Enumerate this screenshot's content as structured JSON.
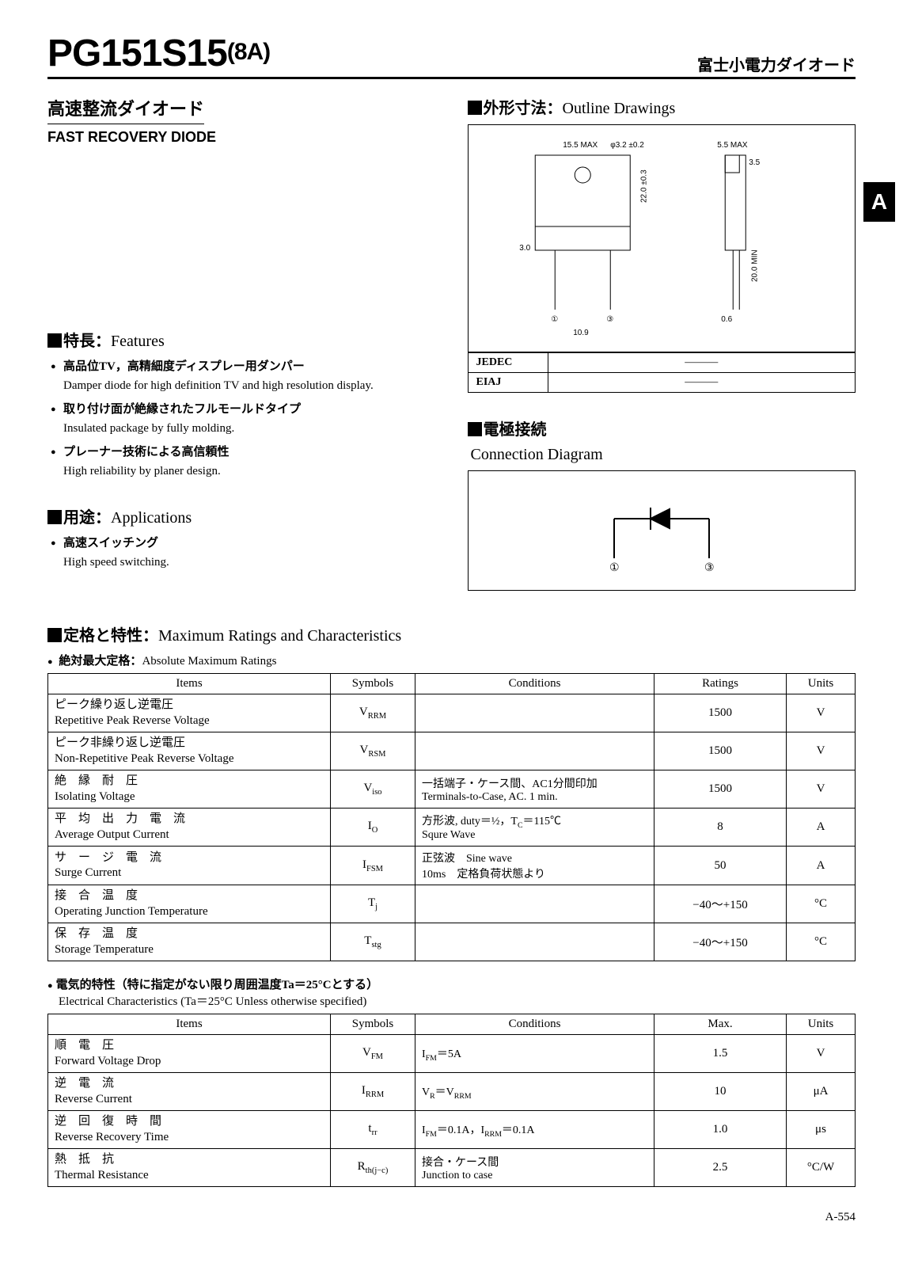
{
  "header": {
    "part_number": "PG151S15",
    "part_suffix": "(8A)",
    "brand": "富士小電力ダイオード"
  },
  "subtitle": {
    "jp": "高速整流ダイオード",
    "en": "FAST RECOVERY DIODE"
  },
  "tab_letter": "A",
  "features": {
    "head_jp": "特長",
    "head_en": "Features",
    "items": [
      {
        "jp": "高品位TV，高精細度ディスプレー用ダンパー",
        "en": "Damper diode for high definition TV and high resolution display."
      },
      {
        "jp": "取り付け面が絶縁されたフルモールドタイプ",
        "en": "Insulated package by fully molding."
      },
      {
        "jp": "プレーナー技術による高信頼性",
        "en": "High reliability by planer design."
      }
    ]
  },
  "applications": {
    "head_jp": "用途",
    "head_en": "Applications",
    "items": [
      {
        "jp": "高速スイッチング",
        "en": "High speed switching."
      }
    ]
  },
  "outline": {
    "head_jp": "外形寸法",
    "head_en": "Outline Drawings",
    "jedec_label": "JEDEC",
    "jedec_value": "———",
    "eiaj_label": "EIAJ",
    "eiaj_value": "———",
    "dims": {
      "w_max": "15.5 MAX",
      "hole": "φ3.2 ±0.2",
      "h": "22.0 ±0.3",
      "side_max": "5.5 MAX",
      "side_w": "3.5",
      "lead_h": "20.0 MIN",
      "lead_sp": "10.9",
      "lead_w": "0.6",
      "body_t": "3.0",
      "pin1": "①",
      "pin3": "③"
    }
  },
  "connection": {
    "head_jp": "電極接続",
    "head_en": "Connection Diagram",
    "pin1": "①",
    "pin3": "③"
  },
  "ratings": {
    "head_jp": "定格と特性",
    "head_en": "Maximum Ratings and Characteristics",
    "sub_jp": "絶対最大定格",
    "sub_en": "Absolute Maximum Ratings",
    "columns": [
      "Items",
      "Symbols",
      "Conditions",
      "Ratings",
      "Units"
    ],
    "rows": [
      {
        "jp": "ピーク繰り返し逆電圧",
        "en": "Repetitive Peak Reverse Voltage",
        "sym": "V<sub>RRM</sub>",
        "cond": "",
        "rat": "1500",
        "unit": "V"
      },
      {
        "jp": "ピーク非繰り返し逆電圧",
        "en": "Non-Repetitive Peak Reverse Voltage",
        "sym": "V<sub>RSM</sub>",
        "cond": "",
        "rat": "1500",
        "unit": "V"
      },
      {
        "jp": "絶　縁　耐　圧",
        "en": "Isolating Voltage",
        "sym": "V<sub>iso</sub>",
        "cond": "一括端子・ケース間、AC1分間印加<br>Terminals-to-Case, AC. 1 min.",
        "rat": "1500",
        "unit": "V"
      },
      {
        "jp": "平　均　出　力　電　流",
        "en": "Average Output Current",
        "sym": "I<sub>O</sub>",
        "cond": "方形波, duty＝½，T<sub>C</sub>＝115℃<br>Squre Wave",
        "rat": "8",
        "unit": "A"
      },
      {
        "jp": "サ　ー　ジ　電　流",
        "en": "Surge Current",
        "sym": "I<sub>FSM</sub>",
        "cond": "正弦波　Sine wave<br>10ms　定格負荷状態より",
        "rat": "50",
        "unit": "A"
      },
      {
        "jp": "接　合　温　度",
        "en": "Operating Junction Temperature",
        "sym": "T<sub>j</sub>",
        "cond": "",
        "rat": "−40〜+150",
        "unit": "°C"
      },
      {
        "jp": "保　存　温　度",
        "en": "Storage Temperature",
        "sym": "T<sub>stg</sub>",
        "cond": "",
        "rat": "−40〜+150",
        "unit": "°C"
      }
    ]
  },
  "electrical": {
    "sub_jp": "電気的特性（特に指定がない限り周囲温度Ta＝25°Cとする）",
    "sub_en": "Electrical Characteristics (Ta＝25°C Unless otherwise specified)",
    "columns": [
      "Items",
      "Symbols",
      "Conditions",
      "Max.",
      "Units"
    ],
    "rows": [
      {
        "jp": "順　電　圧",
        "en": "Forward Voltage Drop",
        "sym": "V<sub>FM</sub>",
        "cond": "I<sub>FM</sub>＝5A",
        "rat": "1.5",
        "unit": "V"
      },
      {
        "jp": "逆　電　流",
        "en": "Reverse Current",
        "sym": "I<sub>RRM</sub>",
        "cond": "V<sub>R</sub>＝V<sub>RRM</sub>",
        "rat": "10",
        "unit": "μA"
      },
      {
        "jp": "逆　回　復　時　間",
        "en": "Reverse Recovery Time",
        "sym": "t<sub>rr</sub>",
        "cond": "I<sub>FM</sub>＝0.1A，I<sub>RRM</sub>＝0.1A",
        "rat": "1.0",
        "unit": "μs"
      },
      {
        "jp": "熱　抵　抗",
        "en": "Thermal Resistance",
        "sym": "R<sub>th(j−c)</sub>",
        "cond": "接合・ケース間<br>Junction to case",
        "rat": "2.5",
        "unit": "°C/W"
      }
    ]
  },
  "page_number": "A-554"
}
